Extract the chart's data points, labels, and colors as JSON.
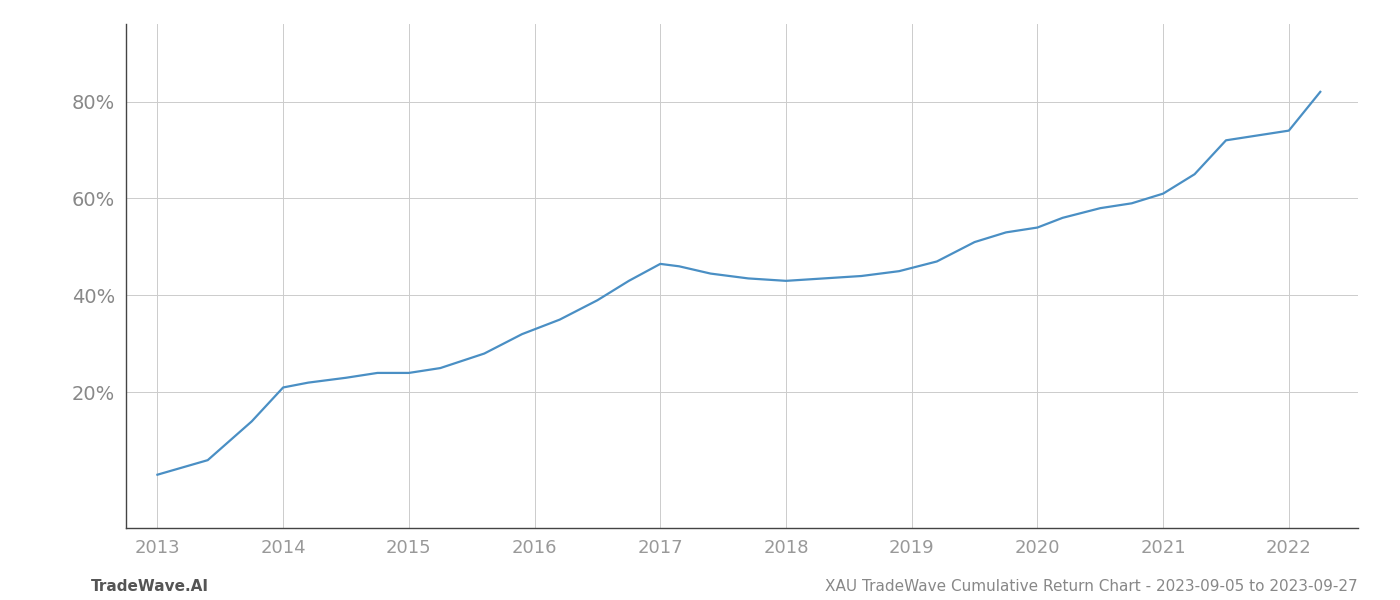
{
  "x_years": [
    2013.0,
    2013.4,
    2013.75,
    2014.0,
    2014.2,
    2014.5,
    2014.75,
    2015.0,
    2015.25,
    2015.6,
    2015.9,
    2016.2,
    2016.5,
    2016.75,
    2017.0,
    2017.15,
    2017.4,
    2017.7,
    2018.0,
    2018.3,
    2018.6,
    2018.9,
    2019.2,
    2019.5,
    2019.75,
    2020.0,
    2020.2,
    2020.5,
    2020.75,
    2021.0,
    2021.25,
    2021.5,
    2021.75,
    2022.0,
    2022.25
  ],
  "y_values": [
    3,
    6,
    14,
    21,
    22,
    23,
    24,
    24,
    25,
    28,
    32,
    35,
    39,
    43,
    46.5,
    46,
    44.5,
    43.5,
    43,
    43.5,
    44,
    45,
    47,
    51,
    53,
    54,
    56,
    58,
    59,
    61,
    65,
    72,
    73,
    74,
    82
  ],
  "line_color": "#4a8fc4",
  "line_width": 1.6,
  "background_color": "#ffffff",
  "grid_color": "#cccccc",
  "ytick_labels": [
    "20%",
    "40%",
    "60%",
    "80%"
  ],
  "ytick_values": [
    20,
    40,
    60,
    80
  ],
  "xtick_labels": [
    "2013",
    "2014",
    "2015",
    "2016",
    "2017",
    "2018",
    "2019",
    "2020",
    "2021",
    "2022"
  ],
  "xtick_values": [
    2013,
    2014,
    2015,
    2016,
    2017,
    2018,
    2019,
    2020,
    2021,
    2022
  ],
  "xlim": [
    2012.75,
    2022.55
  ],
  "ylim": [
    -8,
    96
  ],
  "footer_left": "TradeWave.AI",
  "footer_right": "XAU TradeWave Cumulative Return Chart - 2023-09-05 to 2023-09-27",
  "footer_fontsize": 11,
  "ytick_fontsize": 14,
  "xtick_fontsize": 13,
  "spine_color": "#444444",
  "grid_linewidth": 0.7
}
